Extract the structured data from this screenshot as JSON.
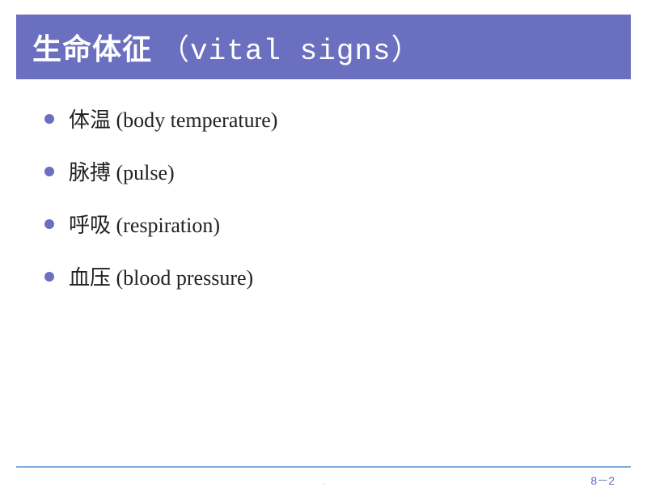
{
  "colors": {
    "title_bg": "#6a6fc0",
    "title_text": "#ffffff",
    "bullet": "#6a6fc0",
    "body_text": "#222222",
    "footer_line": "#7aa8d8",
    "page_num": "#6a6fc0"
  },
  "title": {
    "chinese": "生命体征",
    "english": "（vital signs）"
  },
  "items": [
    {
      "text": "体温 (body temperature)"
    },
    {
      "text": "脉搏 (pulse)"
    },
    {
      "text": "呼吸 (respiration)"
    },
    {
      "text": "血压 (blood pressure)"
    }
  ],
  "footer": {
    "page": "8－2",
    "dot": "."
  }
}
